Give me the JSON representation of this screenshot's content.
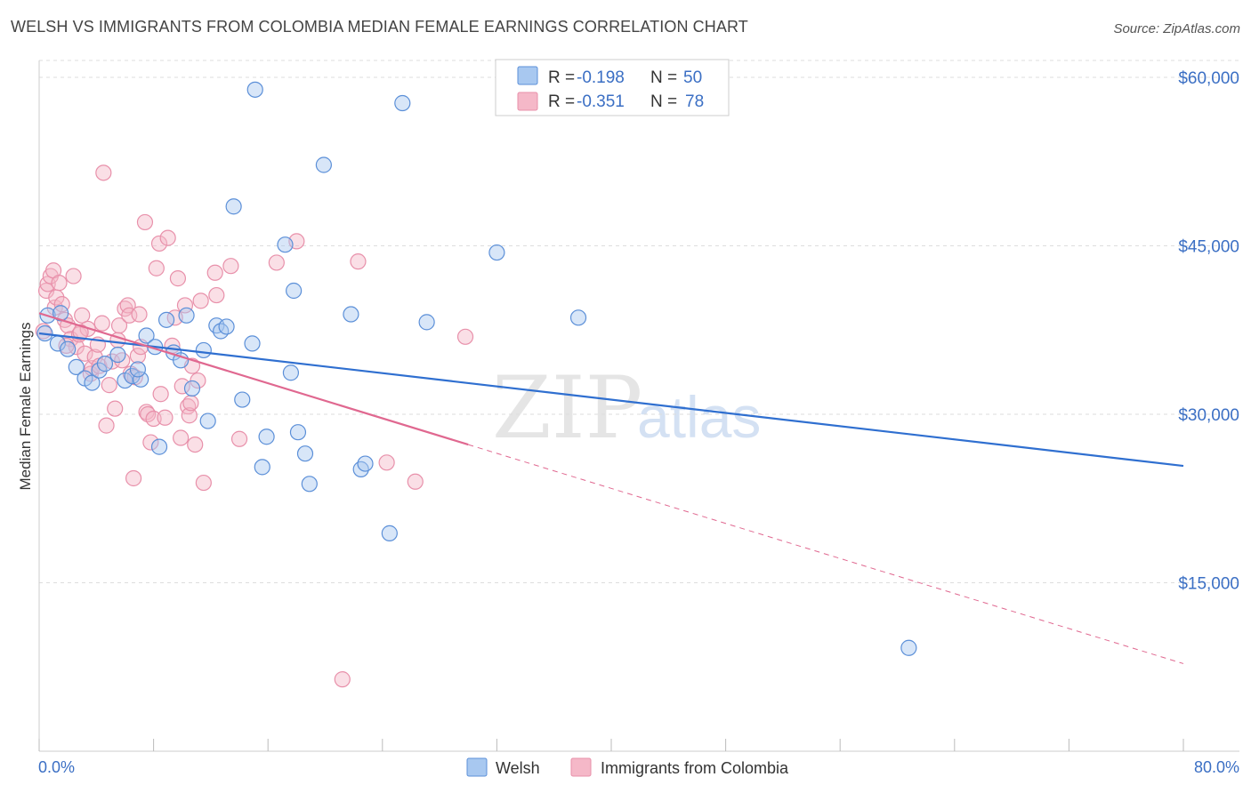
{
  "title": "WELSH VS IMMIGRANTS FROM COLOMBIA MEDIAN FEMALE EARNINGS CORRELATION CHART",
  "source": "Source: ZipAtlas.com",
  "watermark": {
    "zip": "ZIP",
    "atlas": "atlas"
  },
  "colors": {
    "welsh_fill": "#a8c8f0",
    "welsh_stroke": "#5b8fd8",
    "welsh_line": "#2f6fd0",
    "colombia_fill": "#f5b8c8",
    "colombia_stroke": "#e890aa",
    "colombia_line": "#e06890",
    "value_text": "#3b6fc4",
    "grid": "#dddddd"
  },
  "legend": {
    "rows": [
      {
        "r_label": "R =",
        "r_value": "-0.198",
        "n_label": "N =",
        "n_value": "50"
      },
      {
        "r_label": "R =",
        "r_value": "-0.351",
        "n_label": "N =",
        "n_value": "78"
      }
    ]
  },
  "bottom_legend": [
    "Welsh",
    "Immigrants from Colombia"
  ],
  "chart_data": {
    "type": "scatter",
    "title": "WELSH VS IMMIGRANTS FROM COLOMBIA MEDIAN FEMALE EARNINGS CORRELATION CHART",
    "xlabel": "",
    "ylabel": "Median Female Earnings",
    "xlim": [
      0,
      80
    ],
    "ylim": [
      0,
      61500
    ],
    "x_tick_labels": [
      "0.0%",
      "80.0%"
    ],
    "y_ticks": [
      15000,
      30000,
      45000,
      60000
    ],
    "y_tick_labels": [
      "$15,000",
      "$30,000",
      "$45,000",
      "$60,000"
    ],
    "series": [
      {
        "name": "Welsh",
        "r": -0.198,
        "n": 50,
        "trend": {
          "x": [
            0,
            80
          ],
          "y": [
            37200,
            25400
          ]
        },
        "points": [
          [
            0.4,
            37200
          ],
          [
            0.6,
            38800
          ],
          [
            1.3,
            36300
          ],
          [
            1.5,
            39000
          ],
          [
            2.0,
            35800
          ],
          [
            2.6,
            34200
          ],
          [
            3.2,
            33200
          ],
          [
            3.7,
            32800
          ],
          [
            4.2,
            33900
          ],
          [
            4.6,
            34500
          ],
          [
            5.5,
            35300
          ],
          [
            6.0,
            33000
          ],
          [
            6.5,
            33400
          ],
          [
            7.1,
            33100
          ],
          [
            7.5,
            37000
          ],
          [
            8.1,
            36000
          ],
          [
            8.4,
            27100
          ],
          [
            8.9,
            38400
          ],
          [
            9.4,
            35500
          ],
          [
            9.9,
            34800
          ],
          [
            10.3,
            38800
          ],
          [
            10.7,
            32300
          ],
          [
            11.5,
            35700
          ],
          [
            11.8,
            29400
          ],
          [
            12.4,
            37900
          ],
          [
            12.7,
            37400
          ],
          [
            13.1,
            37800
          ],
          [
            13.6,
            48500
          ],
          [
            14.2,
            31300
          ],
          [
            14.9,
            36300
          ],
          [
            15.1,
            58900
          ],
          [
            15.6,
            25300
          ],
          [
            15.9,
            28000
          ],
          [
            17.2,
            45100
          ],
          [
            17.6,
            33700
          ],
          [
            17.8,
            41000
          ],
          [
            18.1,
            28400
          ],
          [
            18.6,
            26500
          ],
          [
            18.9,
            23800
          ],
          [
            19.9,
            52200
          ],
          [
            21.8,
            38900
          ],
          [
            22.5,
            25100
          ],
          [
            22.8,
            25600
          ],
          [
            24.5,
            19400
          ],
          [
            25.4,
            57700
          ],
          [
            27.1,
            38200
          ],
          [
            32.0,
            44400
          ],
          [
            37.7,
            38600
          ],
          [
            60.8,
            9200
          ],
          [
            6.9,
            34000
          ]
        ]
      },
      {
        "name": "Immigrants from Colombia",
        "r": -0.351,
        "n": 78,
        "trend": {
          "x": [
            0,
            30
          ],
          "y": [
            39000,
            27300
          ]
        },
        "trend_extended": {
          "x": [
            30,
            80
          ],
          "y": [
            27300,
            7800
          ]
        },
        "points": [
          [
            0.3,
            37400
          ],
          [
            0.5,
            41000
          ],
          [
            0.6,
            41600
          ],
          [
            0.8,
            42300
          ],
          [
            1.0,
            42800
          ],
          [
            1.1,
            39500
          ],
          [
            1.2,
            40400
          ],
          [
            1.4,
            41700
          ],
          [
            1.6,
            39800
          ],
          [
            1.8,
            38400
          ],
          [
            2.0,
            37900
          ],
          [
            2.2,
            36700
          ],
          [
            2.4,
            42300
          ],
          [
            2.6,
            36000
          ],
          [
            2.8,
            37100
          ],
          [
            3.0,
            38800
          ],
          [
            3.2,
            35400
          ],
          [
            3.4,
            37600
          ],
          [
            3.6,
            33600
          ],
          [
            3.7,
            34100
          ],
          [
            3.9,
            35100
          ],
          [
            4.1,
            36200
          ],
          [
            4.2,
            34300
          ],
          [
            4.4,
            38100
          ],
          [
            4.5,
            51500
          ],
          [
            4.7,
            29000
          ],
          [
            4.9,
            32600
          ],
          [
            5.1,
            34700
          ],
          [
            5.3,
            30500
          ],
          [
            5.5,
            36600
          ],
          [
            5.6,
            37900
          ],
          [
            5.8,
            34800
          ],
          [
            6.0,
            39400
          ],
          [
            6.2,
            39700
          ],
          [
            6.3,
            38800
          ],
          [
            6.4,
            33600
          ],
          [
            6.6,
            24300
          ],
          [
            6.7,
            33300
          ],
          [
            6.9,
            35200
          ],
          [
            7.0,
            38900
          ],
          [
            7.1,
            36000
          ],
          [
            7.4,
            47100
          ],
          [
            7.5,
            30200
          ],
          [
            7.6,
            30000
          ],
          [
            7.8,
            27500
          ],
          [
            8.0,
            29600
          ],
          [
            8.2,
            43000
          ],
          [
            8.4,
            45200
          ],
          [
            8.5,
            31800
          ],
          [
            8.8,
            29700
          ],
          [
            9.0,
            45700
          ],
          [
            9.3,
            36100
          ],
          [
            9.5,
            38600
          ],
          [
            9.7,
            42100
          ],
          [
            9.9,
            27900
          ],
          [
            10.0,
            32500
          ],
          [
            10.2,
            39700
          ],
          [
            10.4,
            30700
          ],
          [
            10.5,
            29900
          ],
          [
            10.6,
            31000
          ],
          [
            10.7,
            34300
          ],
          [
            10.9,
            27300
          ],
          [
            11.1,
            33000
          ],
          [
            11.3,
            40100
          ],
          [
            11.5,
            23900
          ],
          [
            12.3,
            42600
          ],
          [
            12.4,
            40600
          ],
          [
            13.4,
            43200
          ],
          [
            14.0,
            27800
          ],
          [
            16.6,
            43500
          ],
          [
            18.0,
            45400
          ],
          [
            21.2,
            6400
          ],
          [
            22.3,
            43600
          ],
          [
            24.3,
            25700
          ],
          [
            26.3,
            24000
          ],
          [
            29.8,
            36900
          ],
          [
            1.9,
            36100
          ],
          [
            2.9,
            37300
          ]
        ]
      }
    ]
  }
}
